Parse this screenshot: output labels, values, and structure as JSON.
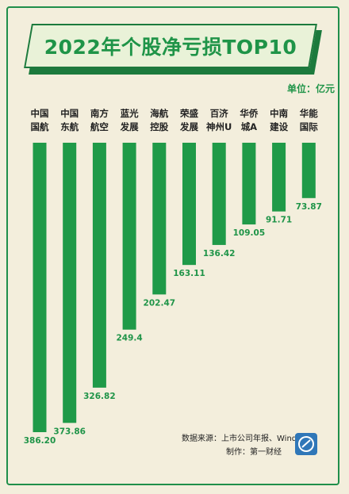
{
  "title": "2022年个股净亏损TOP10",
  "unit": "单位：亿元",
  "source": "数据来源：上市公司年报、Wind",
  "producer": "制作：第一财经",
  "chart_data": {
    "type": "bar",
    "orientation": "vertical-down",
    "categories": [
      [
        "中国",
        "国航"
      ],
      [
        "中国",
        "东航"
      ],
      [
        "南方",
        "航空"
      ],
      [
        "蓝光",
        "发展"
      ],
      [
        "海航",
        "控股"
      ],
      [
        "荣盛",
        "发展"
      ],
      [
        "百济",
        "神州U"
      ],
      [
        "华侨",
        "城A"
      ],
      [
        "中南",
        "建设"
      ],
      [
        "华能",
        "国际"
      ]
    ],
    "values": [
      386.2,
      373.86,
      326.82,
      249.4,
      202.47,
      163.11,
      136.42,
      109.05,
      91.71,
      73.87
    ],
    "value_labels": [
      "386.20",
      "373.86",
      "326.82",
      "249.4",
      "202.47",
      "163.11",
      "136.42",
      "109.05",
      "91.71",
      "73.87"
    ],
    "colors": {
      "bar": "#1f9a48",
      "accent": "#1f9448",
      "background": "#f3eedc"
    },
    "grid": false
  }
}
